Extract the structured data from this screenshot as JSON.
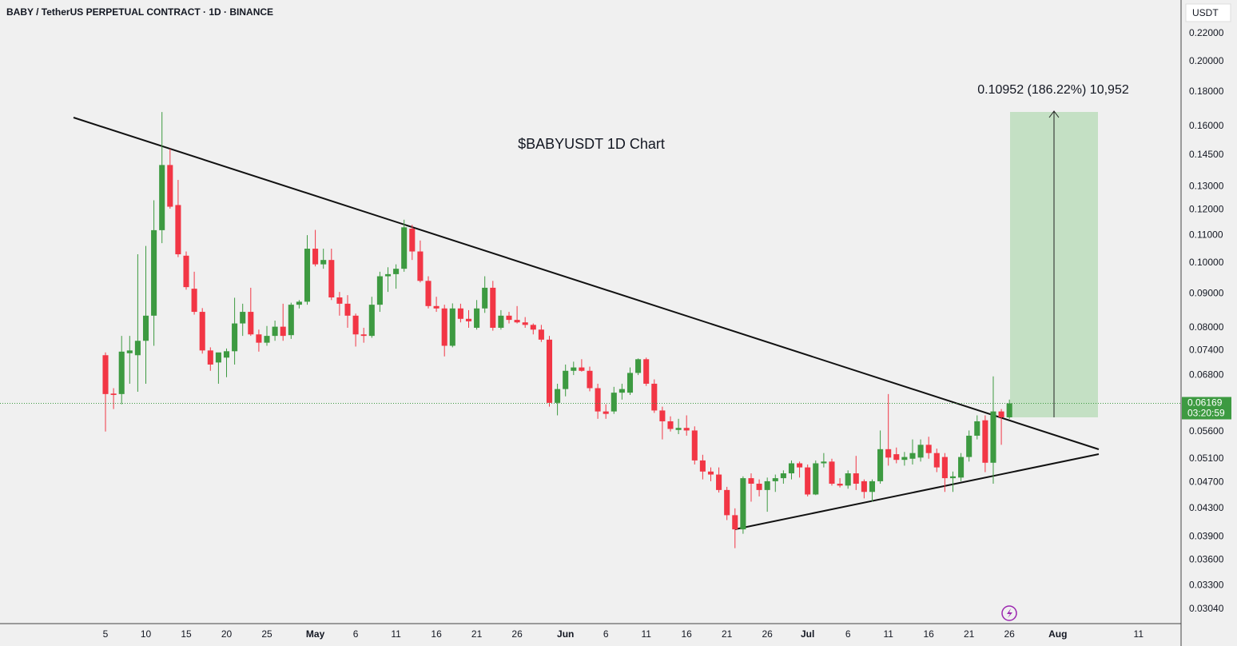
{
  "chart_data": {
    "type": "candlestick",
    "title": "BABY / TetherUS PERPETUAL CONTRACT · 1D · BINANCE",
    "currency": "USDT",
    "annotations": [
      "$BABYUSDT 1D Chart",
      "0.10952 (186.22%) 10,952"
    ],
    "last_price": 0.06169,
    "countdown": "03:20:59",
    "up_color": "#3d9a41",
    "down_color": "#f23645",
    "log_scale": true,
    "grid": false,
    "xlim": [
      -13.07,
      133.27
    ],
    "ylim": [
      0.02893,
      0.2469
    ],
    "xticks": [
      {
        "value": 0,
        "label": "5"
      },
      {
        "value": 5,
        "label": "10"
      },
      {
        "value": 10,
        "label": "15"
      },
      {
        "value": 15,
        "label": "20"
      },
      {
        "value": 20,
        "label": "25"
      },
      {
        "value": 26,
        "label": "May"
      },
      {
        "value": 31,
        "label": "6"
      },
      {
        "value": 36,
        "label": "11"
      },
      {
        "value": 41,
        "label": "16"
      },
      {
        "value": 46,
        "label": "21"
      },
      {
        "value": 51,
        "label": "26"
      },
      {
        "value": 57,
        "label": "Jun"
      },
      {
        "value": 62,
        "label": "6"
      },
      {
        "value": 67,
        "label": "11"
      },
      {
        "value": 72,
        "label": "16"
      },
      {
        "value": 77,
        "label": "21"
      },
      {
        "value": 82,
        "label": "26"
      },
      {
        "value": 87,
        "label": "Jul"
      },
      {
        "value": 92,
        "label": "6"
      },
      {
        "value": 97,
        "label": "11"
      },
      {
        "value": 102,
        "label": "16"
      },
      {
        "value": 107,
        "label": "21"
      },
      {
        "value": 112,
        "label": "26"
      },
      {
        "value": 118,
        "label": "Aug"
      },
      {
        "value": 128,
        "label": "11"
      }
    ],
    "yticks": [
      {
        "value": 0.22,
        "label": "0.22000"
      },
      {
        "value": 0.2,
        "label": "0.20000"
      },
      {
        "value": 0.18,
        "label": "0.18000"
      },
      {
        "value": 0.16,
        "label": "0.16000"
      },
      {
        "value": 0.145,
        "label": "0.14500"
      },
      {
        "value": 0.13,
        "label": "0.13000"
      },
      {
        "value": 0.12,
        "label": "0.12000"
      },
      {
        "value": 0.11,
        "label": "0.11000"
      },
      {
        "value": 0.1,
        "label": "0.10000"
      },
      {
        "value": 0.09,
        "label": "0.09000"
      },
      {
        "value": 0.08,
        "label": "0.08000"
      },
      {
        "value": 0.074,
        "label": "0.07400"
      },
      {
        "value": 0.068,
        "label": "0.06800"
      },
      {
        "value": 0.056,
        "label": "0.05600"
      },
      {
        "value": 0.051,
        "label": "0.05100"
      },
      {
        "value": 0.047,
        "label": "0.04700"
      },
      {
        "value": 0.043,
        "label": "0.04300"
      },
      {
        "value": 0.039,
        "label": "0.03900"
      },
      {
        "value": 0.036,
        "label": "0.03600"
      },
      {
        "value": 0.033,
        "label": "0.03300"
      },
      {
        "value": 0.0304,
        "label": "0.03040"
      }
    ],
    "open": [
      0.0728,
      0.0638,
      0.0637,
      0.0733,
      0.0728,
      0.0765,
      0.0834,
      0.1119,
      0.14,
      0.122,
      0.1025,
      0.0915,
      0.0845,
      0.074,
      0.071,
      0.0722,
      0.0738,
      0.0812,
      0.0845,
      0.0782,
      0.076,
      0.0778,
      0.0803,
      0.078,
      0.0866,
      0.0875,
      0.105,
      0.0995,
      0.101,
      0.0888,
      0.0869,
      0.0834,
      0.0782,
      0.0778,
      0.0866,
      0.0955,
      0.0962,
      0.098,
      0.1125,
      0.104,
      0.094,
      0.0862,
      0.0855,
      0.0752,
      0.0855,
      0.0825,
      0.08,
      0.0855,
      0.0918,
      0.08,
      0.0834,
      0.0822,
      0.0815,
      0.0808,
      0.0795,
      0.0768,
      0.0618,
      0.0648,
      0.069,
      0.0698,
      0.069,
      0.065,
      0.06,
      0.06,
      0.064,
      0.064,
      0.0685,
      0.0718,
      0.066,
      0.0602,
      0.058,
      0.0563,
      0.0567,
      0.0562,
      0.0507,
      0.0488,
      0.0483,
      0.0458,
      0.042,
      0.04,
      0.0477,
      0.0468,
      0.0458,
      0.0472,
      0.0477,
      0.0485,
      0.0502,
      0.0495,
      0.0451,
      0.0502,
      0.0505,
      0.0468,
      0.0465,
      0.0485,
      0.0472,
      0.0455,
      0.0472,
      0.0527,
      0.0518,
      0.0508,
      0.051,
      0.0512,
      0.0535,
      0.052,
      0.0513,
      0.0477,
      0.0478,
      0.0513,
      0.0552,
      0.0582,
      0.0503,
      0.06,
      0.0588
    ],
    "high": [
      0.0735,
      0.065,
      0.0778,
      0.0778,
      0.103,
      0.106,
      0.124,
      0.168,
      0.148,
      0.133,
      0.104,
      0.097,
      0.0856,
      0.0748,
      0.0728,
      0.0745,
      0.0887,
      0.0869,
      0.0918,
      0.0795,
      0.0805,
      0.082,
      0.0869,
      0.0872,
      0.088,
      0.11,
      0.112,
      0.105,
      0.105,
      0.0905,
      0.0895,
      0.084,
      0.08,
      0.089,
      0.097,
      0.0985,
      0.0995,
      0.116,
      0.114,
      0.108,
      0.0955,
      0.089,
      0.0866,
      0.087,
      0.0869,
      0.085,
      0.088,
      0.0955,
      0.094,
      0.085,
      0.0845,
      0.0862,
      0.083,
      0.0812,
      0.0808,
      0.0778,
      0.066,
      0.0705,
      0.0712,
      0.0718,
      0.07,
      0.066,
      0.0615,
      0.0653,
      0.066,
      0.0698,
      0.072,
      0.0722,
      0.067,
      0.061,
      0.059,
      0.0585,
      0.0592,
      0.057,
      0.0517,
      0.0495,
      0.0495,
      0.0463,
      0.043,
      0.048,
      0.0485,
      0.0475,
      0.0478,
      0.0483,
      0.049,
      0.0507,
      0.0505,
      0.05,
      0.0507,
      0.052,
      0.051,
      0.0477,
      0.049,
      0.0515,
      0.0475,
      0.0475,
      0.0562,
      0.0637,
      0.053,
      0.0522,
      0.0545,
      0.0545,
      0.055,
      0.0528,
      0.052,
      0.0488,
      0.052,
      0.0562,
      0.0592,
      0.0592,
      0.0677,
      0.0605,
      0.0625
    ],
    "low": [
      0.056,
      0.0605,
      0.0615,
      0.066,
      0.0642,
      0.066,
      0.0752,
      0.107,
      0.1205,
      0.102,
      0.0912,
      0.0837,
      0.0732,
      0.069,
      0.066,
      0.0675,
      0.0705,
      0.0778,
      0.0778,
      0.0737,
      0.0752,
      0.0765,
      0.0765,
      0.077,
      0.0855,
      0.0866,
      0.0988,
      0.098,
      0.088,
      0.0834,
      0.08,
      0.075,
      0.076,
      0.0773,
      0.0845,
      0.0905,
      0.0915,
      0.097,
      0.101,
      0.0935,
      0.0855,
      0.0845,
      0.0725,
      0.0748,
      0.0815,
      0.08,
      0.0795,
      0.0842,
      0.0792,
      0.0795,
      0.0812,
      0.0812,
      0.08,
      0.0782,
      0.0762,
      0.061,
      0.0592,
      0.0632,
      0.068,
      0.0688,
      0.0643,
      0.0585,
      0.0585,
      0.0595,
      0.0625,
      0.0635,
      0.068,
      0.0655,
      0.0597,
      0.0545,
      0.056,
      0.0555,
      0.0552,
      0.05,
      0.0475,
      0.0472,
      0.0454,
      0.0413,
      0.0375,
      0.0394,
      0.044,
      0.0448,
      0.0425,
      0.0455,
      0.0468,
      0.0475,
      0.0478,
      0.0448,
      0.045,
      0.0495,
      0.0465,
      0.0462,
      0.046,
      0.0458,
      0.0445,
      0.044,
      0.0468,
      0.0498,
      0.0502,
      0.0498,
      0.05,
      0.0505,
      0.051,
      0.0487,
      0.0455,
      0.0455,
      0.0472,
      0.0505,
      0.0545,
      0.0487,
      0.0468,
      0.0535,
      0.0585
    ],
    "close": [
      0.0637,
      0.0635,
      0.0737,
      0.074,
      0.0765,
      0.0834,
      0.1119,
      0.14,
      0.1213,
      0.103,
      0.092,
      0.0845,
      0.074,
      0.0705,
      0.0735,
      0.0738,
      0.0812,
      0.0845,
      0.0782,
      0.076,
      0.0778,
      0.0803,
      0.0778,
      0.0866,
      0.0875,
      0.105,
      0.0995,
      0.101,
      0.0888,
      0.0869,
      0.0834,
      0.0782,
      0.0778,
      0.0866,
      0.0955,
      0.0962,
      0.098,
      0.113,
      0.104,
      0.094,
      0.0862,
      0.0855,
      0.0752,
      0.0855,
      0.0825,
      0.0818,
      0.0855,
      0.0918,
      0.08,
      0.0834,
      0.0822,
      0.0815,
      0.0808,
      0.0795,
      0.0768,
      0.0618,
      0.0648,
      0.069,
      0.0698,
      0.069,
      0.065,
      0.06,
      0.0595,
      0.064,
      0.0648,
      0.0685,
      0.0718,
      0.066,
      0.0602,
      0.058,
      0.0565,
      0.0567,
      0.0562,
      0.0507,
      0.0488,
      0.0483,
      0.0458,
      0.042,
      0.04,
      0.0477,
      0.0468,
      0.0458,
      0.0472,
      0.0477,
      0.0485,
      0.0502,
      0.0495,
      0.0451,
      0.0502,
      0.0505,
      0.0468,
      0.0465,
      0.0485,
      0.0468,
      0.0455,
      0.0472,
      0.0527,
      0.0512,
      0.0508,
      0.0513,
      0.052,
      0.0535,
      0.052,
      0.0495,
      0.0477,
      0.048,
      0.0513,
      0.0552,
      0.058,
      0.0503,
      0.06,
      0.0588,
      0.06169
    ]
  }
}
